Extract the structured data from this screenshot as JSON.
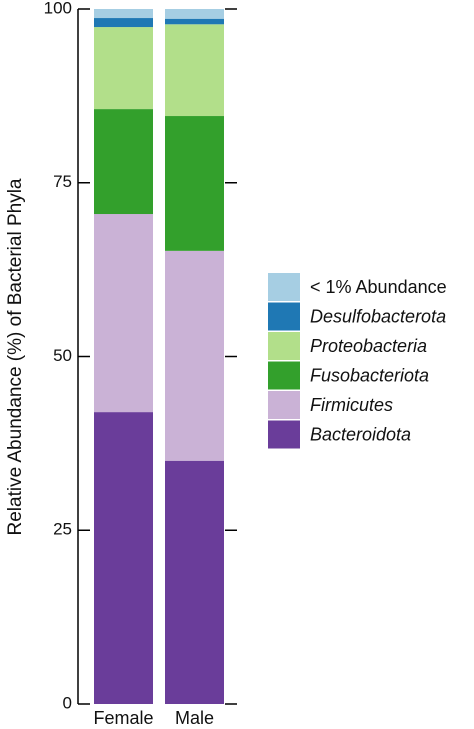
{
  "chart_data": {
    "type": "stacked_bar",
    "y_label": "Relative Abundance (%) of Bacterial Phyla",
    "categories": [
      "Female",
      "Male"
    ],
    "series": [
      {
        "name": "Bacteroidota",
        "color": "#6a3d9a",
        "italic": true,
        "values": [
          42.0,
          35.0
        ]
      },
      {
        "name": "Firmicutes",
        "color": "#cab2d6",
        "italic": true,
        "values": [
          28.5,
          30.2
        ]
      },
      {
        "name": "Fusobacteriota",
        "color": "#33a02c",
        "italic": true,
        "values": [
          15.1,
          19.4
        ]
      },
      {
        "name": "Proteobacteria",
        "color": "#b2df8a",
        "italic": true,
        "values": [
          11.8,
          13.2
        ]
      },
      {
        "name": "Desulfobacterota",
        "color": "#1f78b4",
        "italic": true,
        "values": [
          1.3,
          0.8
        ]
      },
      {
        "name": "< 1% Abundance",
        "color": "#a6cee3",
        "italic": false,
        "values": [
          1.3,
          1.4
        ]
      }
    ],
    "ylim": [
      0,
      100
    ],
    "yticks": [
      0,
      25,
      50,
      75,
      100
    ]
  }
}
